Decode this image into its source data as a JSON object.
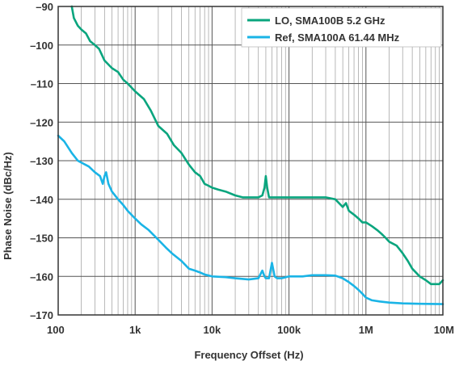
{
  "chart_data": {
    "type": "line",
    "xlabel": "Frequency Offset (Hz)",
    "ylabel": "Phase Noise (dBc/Hz)",
    "x_scale": "log",
    "xlim": [
      100,
      10000000
    ],
    "ylim": [
      -170,
      -90
    ],
    "x_ticks": [
      100,
      1000,
      10000,
      100000,
      1000000,
      10000000
    ],
    "x_tick_labels": [
      "100",
      "1k",
      "10k",
      "100k",
      "1M",
      "10M"
    ],
    "y_ticks": [
      -90,
      -100,
      -110,
      -120,
      -130,
      -140,
      -150,
      -160,
      -170
    ],
    "y_tick_labels": [
      "–90",
      "–100",
      "–110",
      "–120",
      "–130",
      "–140",
      "–150",
      "–160",
      "–170"
    ],
    "grid": true,
    "legend_position": "top-right",
    "series": [
      {
        "name": "LO, SMA100B 5.2 GHz",
        "color": "#0aa57e",
        "x": [
          150,
          160,
          180,
          200,
          230,
          260,
          300,
          340,
          400,
          500,
          600,
          700,
          800,
          1000,
          1300,
          1600,
          2000,
          2600,
          3200,
          4000,
          5000,
          6000,
          7000,
          8000,
          9000,
          10000,
          12000,
          15000,
          20000,
          25000,
          30000,
          35000,
          40000,
          45000,
          48000,
          50000,
          52000,
          55000,
          60000,
          70000,
          80000,
          90000,
          100000,
          130000,
          150000,
          200000,
          250000,
          300000,
          400000,
          500000,
          550000,
          600000,
          700000,
          800000,
          900000,
          1000000,
          1200000,
          1400000,
          1600000,
          1800000,
          2000000,
          2500000,
          3000000,
          3500000,
          4000000,
          5000000,
          6000000,
          7000000,
          8000000,
          9000000,
          10000000
        ],
        "y": [
          -90,
          -93,
          -95,
          -96,
          -97,
          -99,
          -100,
          -101,
          -104,
          -106,
          -107,
          -109,
          -110,
          -112,
          -114,
          -117,
          -121,
          -123,
          -126,
          -128,
          -131,
          -133,
          -134,
          -136,
          -136.5,
          -137,
          -137.5,
          -138,
          -139,
          -139.5,
          -139.5,
          -139.5,
          -139.5,
          -139,
          -137,
          -134,
          -137,
          -139.5,
          -139.5,
          -139.5,
          -139.5,
          -139.5,
          -139.5,
          -139.5,
          -139.5,
          -139.5,
          -139.5,
          -139.5,
          -140,
          -142,
          -141,
          -143,
          -144,
          -145,
          -146,
          -146,
          -147,
          -148,
          -149,
          -150,
          -151,
          -152,
          -154,
          -156,
          -158,
          -160,
          -161,
          -162,
          -162,
          -162,
          -161
        ]
      },
      {
        "name": "Ref, SMA100A 61.44 MHz",
        "color": "#1ab4e6",
        "x": [
          100,
          120,
          150,
          180,
          200,
          250,
          300,
          350,
          380,
          400,
          420,
          450,
          500,
          600,
          700,
          800,
          1000,
          1200,
          1500,
          2000,
          2500,
          3000,
          4000,
          5000,
          6000,
          7000,
          8000,
          10000,
          15000,
          20000,
          30000,
          40000,
          45000,
          48000,
          50000,
          52000,
          55000,
          60000,
          65000,
          70000,
          80000,
          100000,
          150000,
          200000,
          300000,
          400000,
          500000,
          600000,
          700000,
          800000,
          900000,
          1000000,
          1200000,
          1500000,
          2000000,
          3000000,
          5000000,
          10000000
        ],
        "y": [
          -123.5,
          -125,
          -128,
          -130,
          -130.5,
          -131.5,
          -133,
          -134,
          -136,
          -134,
          -133,
          -136,
          -138,
          -140,
          -141.5,
          -143,
          -145,
          -146.5,
          -148,
          -150.5,
          -152.5,
          -154,
          -156,
          -158,
          -158.5,
          -159,
          -159.5,
          -160,
          -160.2,
          -160.5,
          -160.8,
          -160.5,
          -158.5,
          -160,
          -160.5,
          -160.5,
          -160.5,
          -156.5,
          -160,
          -160.5,
          -160.5,
          -160,
          -160,
          -159.7,
          -159.7,
          -159.8,
          -160.5,
          -161.5,
          -162.5,
          -163.5,
          -164.5,
          -165.5,
          -166.2,
          -166.5,
          -166.8,
          -167,
          -167.1,
          -167.2
        ]
      }
    ]
  }
}
